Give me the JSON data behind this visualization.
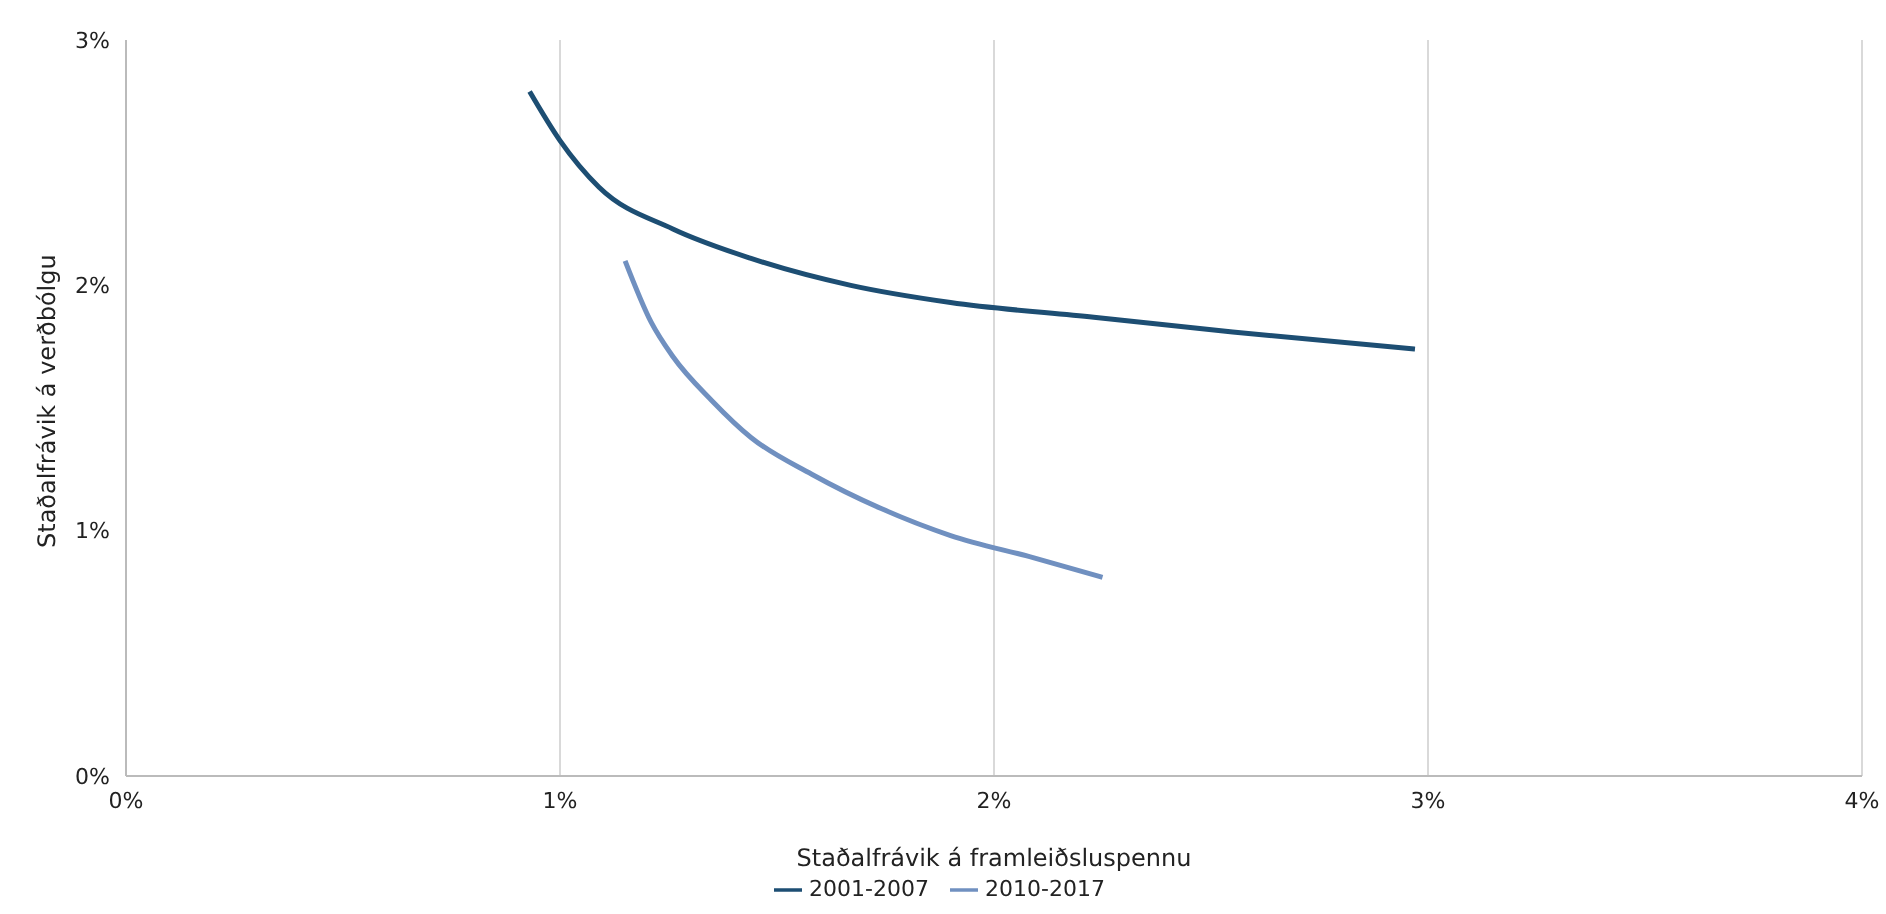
{
  "chart_data": {
    "type": "line",
    "xlabel": "Staðalfrávik á framleiðsluspennu",
    "ylabel": "Staðalfrávik á verðbólgu",
    "xlim": [
      0,
      4
    ],
    "xticks": [
      {
        "value": 0,
        "label": "0%"
      },
      {
        "value": 1,
        "label": "1%"
      },
      {
        "value": 2,
        "label": "2%"
      },
      {
        "value": 3,
        "label": "3%"
      },
      {
        "value": 4,
        "label": "4%"
      }
    ],
    "ylim": [
      0,
      3
    ],
    "yticks": [
      {
        "value": 0,
        "label": "0%"
      },
      {
        "value": 1,
        "label": "1%"
      },
      {
        "value": 2,
        "label": "2%"
      },
      {
        "value": 3,
        "label": "3%"
      }
    ],
    "grid": "x",
    "legend": "bottom",
    "marker": "none",
    "line_style": "solid",
    "series": [
      {
        "name": "2001-2007",
        "color": "#1d4e73",
        "x": [
          0.93,
          1.0,
          1.09,
          1.26,
          1.44,
          1.67,
          1.9,
          2.23,
          2.55,
          2.97
        ],
        "values": [
          2.79,
          2.59,
          2.4,
          2.23,
          2.11,
          2.0,
          1.93,
          1.87,
          1.81,
          1.74
        ]
      },
      {
        "name": "2010-2017",
        "color": "#7090c0",
        "x": [
          1.15,
          1.21,
          1.26,
          1.35,
          1.44,
          1.58,
          1.74,
          1.9,
          2.09,
          2.25
        ],
        "values": [
          2.1,
          1.85,
          1.71,
          1.53,
          1.38,
          1.23,
          1.09,
          0.98,
          0.89,
          0.81
        ]
      }
    ]
  }
}
